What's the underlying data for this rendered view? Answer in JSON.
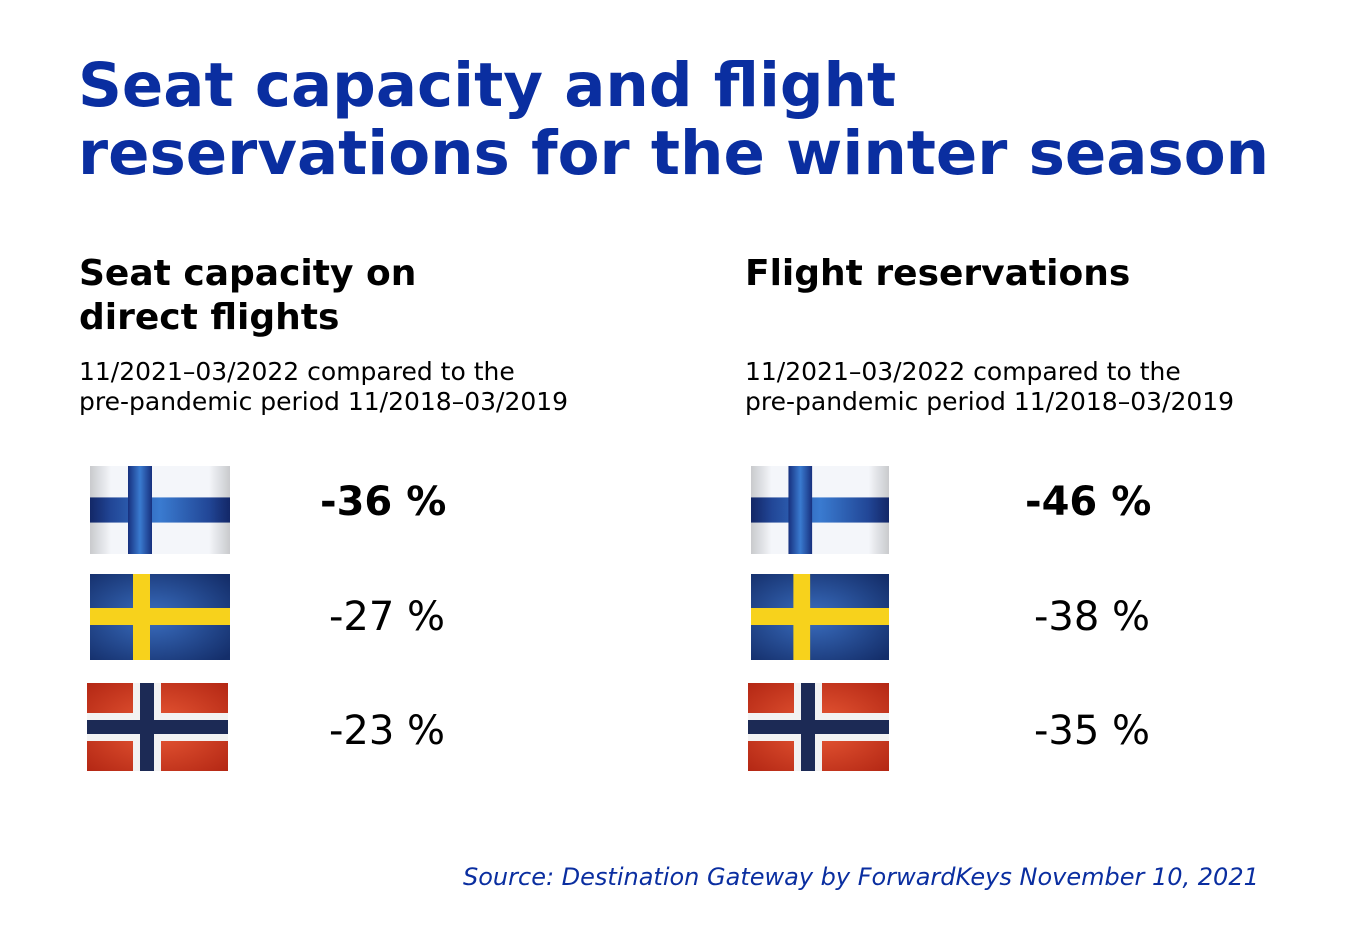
{
  "title": "Seat capacity and flight\nreservations for the winter season",
  "left": {
    "heading": "Seat capacity on\ndirect flights",
    "subtitle": "11/2021–03/2022 compared to the\npre-pandemic period 11/2018–03/2019",
    "rows": [
      {
        "flag": "finland-flag",
        "value": "-36 %"
      },
      {
        "flag": "sweden-flag",
        "value": "-27 %"
      },
      {
        "flag": "norway-flag",
        "value": "-23 %"
      }
    ]
  },
  "right": {
    "heading": "Flight reservations",
    "subtitle": "11/2021–03/2022 compared to the\npre-pandemic period 11/2018–03/2019",
    "rows": [
      {
        "flag": "finland-flag",
        "value": "-46 %"
      },
      {
        "flag": "sweden-flag",
        "value": "-38 %"
      },
      {
        "flag": "norway-flag",
        "value": "-35 %"
      }
    ]
  },
  "source": "Source: Destination Gateway by ForwardKeys November 10, 2021",
  "colors": {
    "title": "#0a2ea0",
    "source": "#0a2ea0",
    "finland_blue": "#1f3d9a",
    "sweden_blue": "#1d4aa0",
    "sweden_yellow": "#f7d21c",
    "norway_red": "#d63a22",
    "norway_blue": "#1c2a55"
  }
}
